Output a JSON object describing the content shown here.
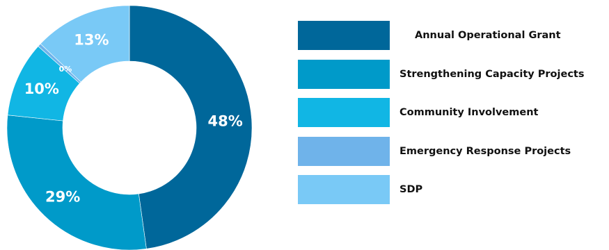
{
  "chart_data": {
    "type": "pie",
    "variant": "donut",
    "title": "",
    "legend_position": "right",
    "categories": [
      "Annual Operational Grant",
      "Strengthening Capacity Projects",
      "Community Involvement",
      "Emergency Response Projects",
      "SDP"
    ],
    "values": [
      48,
      29,
      10,
      0,
      13
    ],
    "labels": [
      "48%",
      "29%",
      "10%",
      "0%",
      "13%"
    ],
    "colors": [
      "#00679a",
      "#009ac9",
      "#11b6e4",
      "#6fb3ea",
      "#79c9f6"
    ]
  }
}
